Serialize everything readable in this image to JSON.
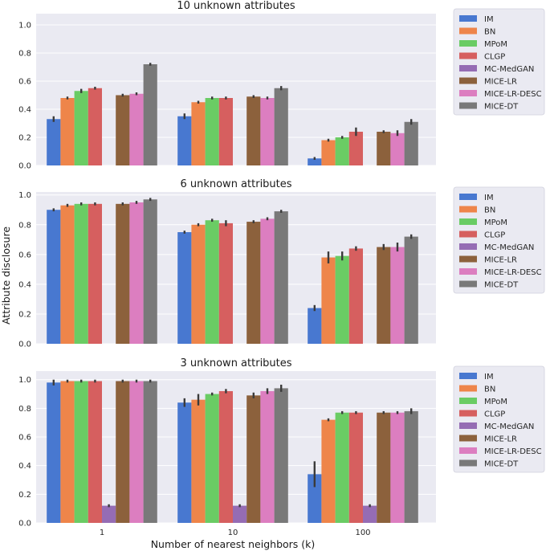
{
  "figure": {
    "xlabel": "Number of nearest neighbors (k)",
    "ylabel": "Attribute disclosure"
  },
  "colors": {
    "IM": "#4878d0",
    "BN": "#ee854a",
    "MPoM": "#6acc64",
    "CLGP": "#d65f5f",
    "MC-MedGAN": "#956cb4",
    "MICE-LR": "#8c613c",
    "MICE-LR-DESC": "#dc7ec0",
    "MICE-DT": "#797979",
    "plot_bg": "#eaeaf2",
    "grid": "#ffffff"
  },
  "chart_data": [
    {
      "type": "bar",
      "title": "10 unknown attributes",
      "xlabel": "",
      "ylabel": "Attribute disclosure",
      "categories": [
        "1",
        "10",
        "100"
      ],
      "ylim": [
        0,
        1.08
      ],
      "yticks": [
        "0.0",
        "0.2",
        "0.4",
        "0.6",
        "0.8",
        "1.0"
      ],
      "legend": "outside-right",
      "series": [
        {
          "name": "IM",
          "values": [
            0.33,
            0.35,
            0.05
          ],
          "err": [
            0.02,
            0.02,
            0.01
          ]
        },
        {
          "name": "BN",
          "values": [
            0.48,
            0.45,
            0.18
          ],
          "err": [
            0.01,
            0.01,
            0.01
          ]
        },
        {
          "name": "MPoM",
          "values": [
            0.53,
            0.48,
            0.2
          ],
          "err": [
            0.015,
            0.01,
            0.01
          ]
        },
        {
          "name": "CLGP",
          "values": [
            0.55,
            0.48,
            0.24
          ],
          "err": [
            0.01,
            0.01,
            0.03
          ]
        },
        {
          "name": "MC-MedGAN",
          "values": [
            0.0,
            0.0,
            0.0
          ],
          "err": [
            0.0,
            0.0,
            0.0
          ]
        },
        {
          "name": "MICE-LR",
          "values": [
            0.5,
            0.49,
            0.24
          ],
          "err": [
            0.01,
            0.01,
            0.01
          ]
        },
        {
          "name": "MICE-LR-DESC",
          "values": [
            0.51,
            0.48,
            0.23
          ],
          "err": [
            0.01,
            0.01,
            0.02
          ]
        },
        {
          "name": "MICE-DT",
          "values": [
            0.72,
            0.55,
            0.31
          ],
          "err": [
            0.01,
            0.015,
            0.02
          ]
        }
      ]
    },
    {
      "type": "bar",
      "title": "6 unknown attributes",
      "xlabel": "",
      "ylabel": "Attribute disclosure",
      "categories": [
        "1",
        "10",
        "100"
      ],
      "ylim": [
        0,
        1.02
      ],
      "yticks": [
        "0.0",
        "0.2",
        "0.4",
        "0.6",
        "0.8",
        "1.0"
      ],
      "legend": "outside-right",
      "series": [
        {
          "name": "IM",
          "values": [
            0.9,
            0.75,
            0.24
          ],
          "err": [
            0.01,
            0.01,
            0.02
          ]
        },
        {
          "name": "BN",
          "values": [
            0.93,
            0.8,
            0.58
          ],
          "err": [
            0.01,
            0.01,
            0.04
          ]
        },
        {
          "name": "MPoM",
          "values": [
            0.94,
            0.83,
            0.59
          ],
          "err": [
            0.01,
            0.01,
            0.03
          ]
        },
        {
          "name": "CLGP",
          "values": [
            0.94,
            0.81,
            0.64
          ],
          "err": [
            0.01,
            0.02,
            0.015
          ]
        },
        {
          "name": "MC-MedGAN",
          "values": [
            0.0,
            0.0,
            0.0
          ],
          "err": [
            0.0,
            0.0,
            0.0
          ]
        },
        {
          "name": "MICE-LR",
          "values": [
            0.94,
            0.82,
            0.65
          ],
          "err": [
            0.01,
            0.01,
            0.02
          ]
        },
        {
          "name": "MICE-LR-DESC",
          "values": [
            0.95,
            0.84,
            0.65
          ],
          "err": [
            0.01,
            0.01,
            0.03
          ]
        },
        {
          "name": "MICE-DT",
          "values": [
            0.97,
            0.89,
            0.72
          ],
          "err": [
            0.01,
            0.01,
            0.015
          ]
        }
      ]
    },
    {
      "type": "bar",
      "title": "3 unknown attributes",
      "xlabel": "Number of nearest neighbors (k)",
      "ylabel": "Attribute disclosure",
      "categories": [
        "1",
        "10",
        "100"
      ],
      "ylim": [
        0,
        1.06
      ],
      "yticks": [
        "0.0",
        "0.2",
        "0.4",
        "0.6",
        "0.8",
        "1.0"
      ],
      "legend": "outside-right",
      "series": [
        {
          "name": "IM",
          "values": [
            0.98,
            0.84,
            0.34
          ],
          "err": [
            0.02,
            0.03,
            0.09
          ]
        },
        {
          "name": "BN",
          "values": [
            0.99,
            0.86,
            0.72
          ],
          "err": [
            0.01,
            0.04,
            0.01
          ]
        },
        {
          "name": "MPoM",
          "values": [
            0.99,
            0.9,
            0.77
          ],
          "err": [
            0.01,
            0.01,
            0.01
          ]
        },
        {
          "name": "CLGP",
          "values": [
            0.99,
            0.92,
            0.77
          ],
          "err": [
            0.01,
            0.015,
            0.01
          ]
        },
        {
          "name": "MC-MedGAN",
          "values": [
            0.12,
            0.12,
            0.12
          ],
          "err": [
            0.01,
            0.01,
            0.01
          ]
        },
        {
          "name": "MICE-LR",
          "values": [
            0.99,
            0.89,
            0.77
          ],
          "err": [
            0.01,
            0.02,
            0.01
          ]
        },
        {
          "name": "MICE-LR-DESC",
          "values": [
            0.99,
            0.92,
            0.77
          ],
          "err": [
            0.01,
            0.02,
            0.01
          ]
        },
        {
          "name": "MICE-DT",
          "values": [
            0.99,
            0.94,
            0.78
          ],
          "err": [
            0.01,
            0.025,
            0.02
          ]
        }
      ]
    }
  ]
}
